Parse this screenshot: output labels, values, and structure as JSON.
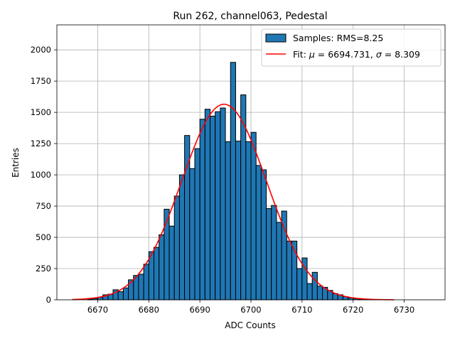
{
  "chart_data": {
    "type": "bar",
    "title": "Run 262, channel063, Pedestal",
    "xlabel": "ADC Counts",
    "ylabel": "Entries",
    "xlim": [
      6662,
      6738
    ],
    "ylim": [
      0,
      2200
    ],
    "xticks": [
      6670,
      6680,
      6690,
      6700,
      6710,
      6720,
      6730
    ],
    "yticks": [
      0,
      250,
      500,
      750,
      1000,
      1250,
      1500,
      1750,
      2000
    ],
    "grid": true,
    "bar_color": "#1f77b4",
    "fit_color": "#ff0000",
    "histogram": {
      "name": "Samples: RMS=8.25",
      "bin_width": 1,
      "bins_left_edges": [
        6668,
        6669,
        6670,
        6671,
        6672,
        6673,
        6674,
        6675,
        6676,
        6677,
        6678,
        6679,
        6680,
        6681,
        6682,
        6683,
        6684,
        6685,
        6686,
        6687,
        6688,
        6689,
        6690,
        6691,
        6692,
        6693,
        6694,
        6695,
        6696,
        6697,
        6698,
        6699,
        6700,
        6701,
        6702,
        6703,
        6704,
        6705,
        6706,
        6707,
        6708,
        6709,
        6710,
        6711,
        6712,
        6713,
        6714,
        6715,
        6716,
        6717,
        6718,
        6719,
        6720,
        6721,
        6722,
        6723,
        6724,
        6725
      ],
      "counts": [
        5,
        10,
        20,
        40,
        45,
        80,
        65,
        95,
        160,
        195,
        205,
        285,
        385,
        420,
        520,
        725,
        590,
        830,
        1000,
        1315,
        1050,
        1210,
        1445,
        1525,
        1470,
        1505,
        1535,
        1265,
        1900,
        1270,
        1640,
        1265,
        1340,
        1075,
        1040,
        730,
        755,
        620,
        710,
        470,
        470,
        250,
        335,
        130,
        220,
        110,
        100,
        75,
        50,
        40,
        25,
        15,
        10,
        5,
        5,
        3,
        2,
        1
      ]
    },
    "fit": {
      "name_plain": "Fit: ",
      "mu_symbol": "μ",
      "mu_value": " = 6694.731, ",
      "sigma_symbol": "σ",
      "sigma_value": " = 8.309",
      "mu": 6694.731,
      "sigma": 8.309,
      "amplitude": 1565,
      "x_range": [
        6665,
        6728
      ]
    },
    "legend_position": "upper-right"
  }
}
